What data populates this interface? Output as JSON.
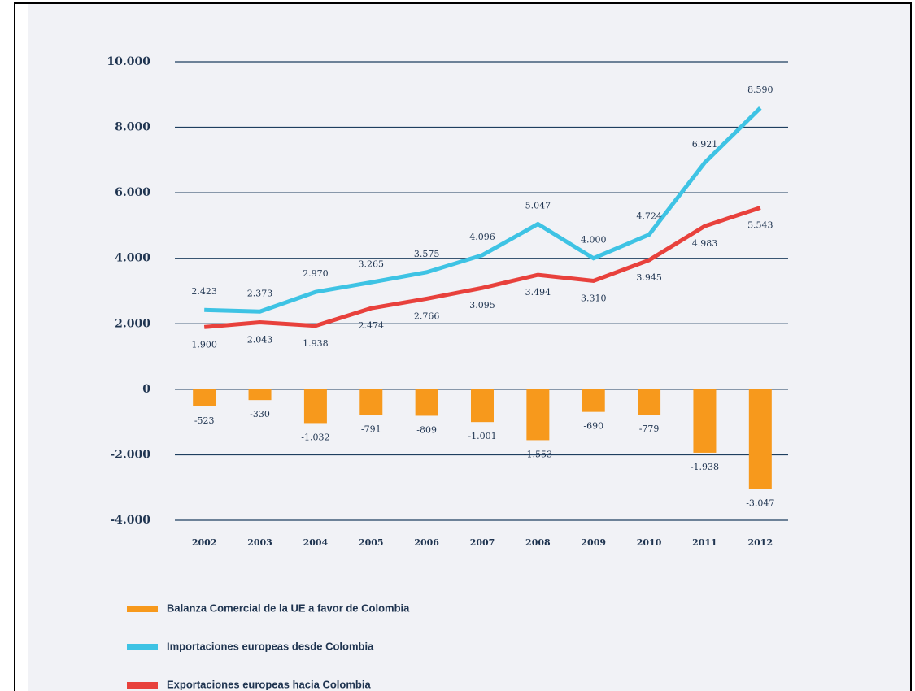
{
  "chart_data": {
    "type": "combo",
    "categories": [
      "2002",
      "2003",
      "2004",
      "2005",
      "2006",
      "2007",
      "2008",
      "2009",
      "2010",
      "2011",
      "2012"
    ],
    "ylim": [
      -4000,
      10000
    ],
    "yticks": [
      {
        "value": -4000,
        "label": "-4.000"
      },
      {
        "value": -2000,
        "label": "-2.000"
      },
      0,
      {
        "value": 2000,
        "label": "2.000"
      },
      {
        "value": 4000,
        "label": "4.000"
      },
      {
        "value": 6000,
        "label": "6.000"
      },
      {
        "value": 8000,
        "label": "8.000"
      },
      {
        "value": 10000,
        "label": "10.000"
      }
    ],
    "grid": true,
    "legend": "bottom",
    "series": [
      {
        "name": "Balanza Comercial de la UE a favor de Colombia",
        "type": "bar",
        "color": "#f7991c",
        "values": [
          -523,
          -330,
          -1032,
          -791,
          -809,
          -1001,
          -1553,
          -690,
          -779,
          -1938,
          -3047
        ],
        "value_labels": [
          "-523",
          "-330",
          "-1.032",
          "-791",
          "-809",
          "-1.001",
          "-1.553",
          "-690",
          "-779",
          "-1.938",
          "-3.047"
        ]
      },
      {
        "name": "Importaciones europeas desde Colombia",
        "type": "line",
        "color": "#3ec3e4",
        "values": [
          2423,
          2373,
          2970,
          3265,
          3575,
          4096,
          5047,
          4000,
          4724,
          6921,
          8590
        ],
        "value_labels": [
          "2.423",
          "2.373",
          "2.970",
          "3.265",
          "3.575",
          "4.096",
          "5.047",
          "4.000",
          "4.724",
          "6.921",
          "8.590"
        ]
      },
      {
        "name": "Exportaciones europeas hacia Colombia",
        "type": "line",
        "color": "#e8413c",
        "values": [
          1900,
          2043,
          1938,
          2474,
          2766,
          3095,
          3494,
          3310,
          3945,
          4983,
          5543
        ],
        "value_labels": [
          "1.900",
          "2.043",
          "1.938",
          "2.474",
          "2.766",
          "3.095",
          "3.494",
          "3.310",
          "3.945",
          "4.983",
          "5.543"
        ]
      }
    ]
  }
}
